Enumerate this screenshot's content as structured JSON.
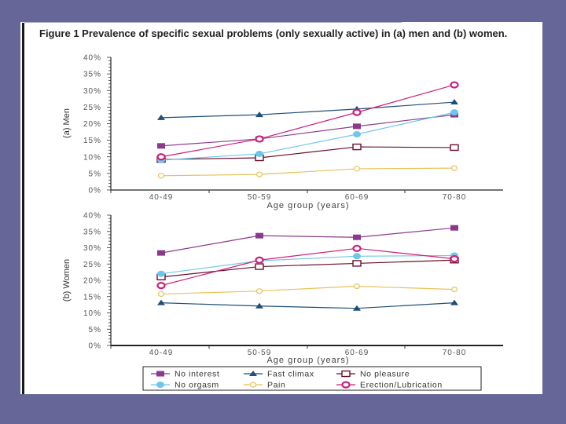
{
  "page": {
    "background": "#666699",
    "title": "Figure 1 Prevalence of specific sexual problems (only sexually active) in (a) men and (b) women."
  },
  "chart_data": [
    {
      "type": "line",
      "panel_label": "(a) Men",
      "xlabel": "Age group (years)",
      "ylabel": "(a) Men",
      "categories": [
        "40-49",
        "50-59",
        "60-69",
        "70-80"
      ],
      "ylim": [
        0,
        40
      ],
      "yticks": [
        "0%",
        "5%",
        "10%",
        "15%",
        "20%",
        "25%",
        "30%",
        "35%",
        "40%"
      ],
      "grid": false,
      "series": [
        {
          "name": "No interest",
          "values": [
            13.3,
            15.4,
            19.2,
            22.7
          ]
        },
        {
          "name": "Fast climax",
          "values": [
            21.8,
            22.7,
            24.4,
            26.5
          ]
        },
        {
          "name": "No pleasure",
          "values": [
            9.2,
            9.7,
            13.0,
            12.8
          ]
        },
        {
          "name": "No orgasm",
          "values": [
            9.0,
            10.9,
            16.8,
            23.4
          ]
        },
        {
          "name": "Pain",
          "values": [
            4.3,
            4.7,
            6.4,
            6.6
          ]
        },
        {
          "name": "Erection/Lubrication",
          "values": [
            10.0,
            15.4,
            23.4,
            31.7
          ]
        }
      ]
    },
    {
      "type": "line",
      "panel_label": "(b) Women",
      "xlabel": "Age group (years)",
      "ylabel": "(b) Women",
      "categories": [
        "40-49",
        "50-59",
        "60-69",
        "70-80"
      ],
      "ylim": [
        0,
        40
      ],
      "yticks": [
        "0%",
        "5%",
        "10%",
        "15%",
        "20%",
        "25%",
        "30%",
        "35%",
        "40%"
      ],
      "grid": false,
      "series": [
        {
          "name": "No interest",
          "values": [
            28.4,
            33.7,
            33.2,
            36.1
          ]
        },
        {
          "name": "Fast climax",
          "values": [
            13.1,
            12.1,
            11.4,
            13.1
          ]
        },
        {
          "name": "No pleasure",
          "values": [
            21.0,
            24.2,
            25.2,
            26.2
          ]
        },
        {
          "name": "No orgasm",
          "values": [
            22.0,
            26.0,
            27.4,
            27.6
          ]
        },
        {
          "name": "Pain",
          "values": [
            15.8,
            16.7,
            18.2,
            17.2
          ]
        },
        {
          "name": "Erection/Lubrication",
          "values": [
            18.4,
            26.2,
            29.8,
            26.6
          ]
        }
      ]
    }
  ],
  "legend": {
    "placement": "bottom-center",
    "items": [
      {
        "name": "No interest",
        "color": "#8b3a8b",
        "marker": "filled-square"
      },
      {
        "name": "Fast climax",
        "color": "#1f4e79",
        "marker": "filled-triangle"
      },
      {
        "name": "No pleasure",
        "color": "#6b0f2a",
        "marker": "open-square"
      },
      {
        "name": "No orgasm",
        "color": "#6ec6ea",
        "marker": "filled-circle"
      },
      {
        "name": "Pain",
        "color": "#e8c15a",
        "marker": "open-circle"
      },
      {
        "name": "Erection/Lubrication",
        "color": "#cc1f7a",
        "marker": "open-circle-thick"
      }
    ]
  }
}
